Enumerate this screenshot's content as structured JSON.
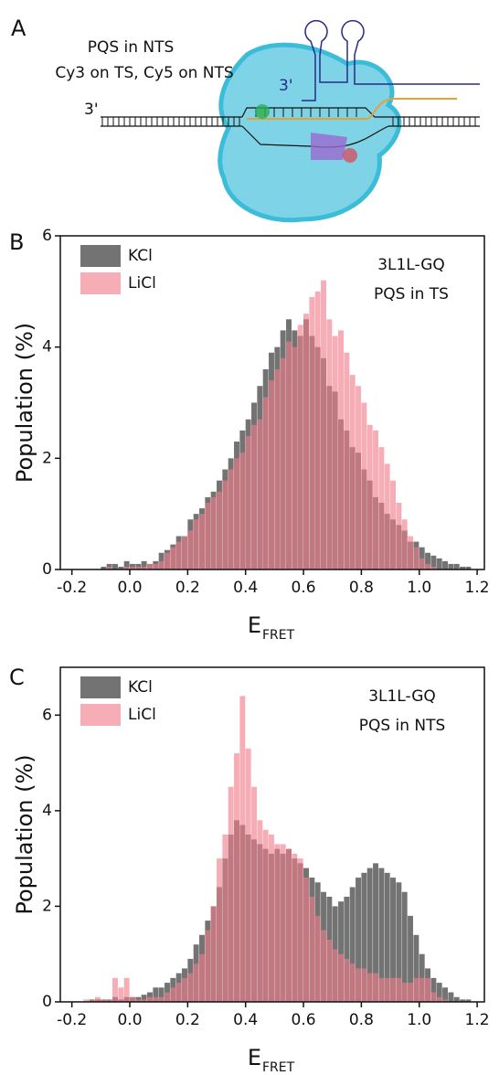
{
  "diagram": {
    "panel_label": "A",
    "title_line1": "PQS in NTS",
    "title_line2": "Cy3 on TS, Cy5 on NTS",
    "end_label_left": "3'",
    "end_label_top": "3'"
  },
  "chart_data": [
    {
      "type": "histogram",
      "panel_label": "B",
      "ylabel": "Population (%)",
      "xlabel": "E",
      "xlabel_subscript": "FRET",
      "annotations": [
        "3L1L-GQ",
        "PQS in TS"
      ],
      "legend": "top-left",
      "xlim": [
        -0.24,
        1.225
      ],
      "ylim": [
        0,
        6
      ],
      "xticks": [
        -0.2,
        {
          "value": 0,
          "label": "0.0"
        },
        0.2,
        0.4,
        0.6,
        0.8,
        {
          "value": 1,
          "label": "1.0"
        },
        1.2
      ],
      "yticks": [
        0,
        2,
        4,
        6
      ],
      "bins": [
        -0.2,
        -0.18,
        -0.16,
        -0.14,
        -0.12,
        -0.1,
        -0.08,
        -0.06,
        -0.04,
        -0.02,
        0,
        0.02,
        0.04,
        0.06,
        0.08,
        0.1,
        0.12,
        0.14,
        0.16,
        0.18,
        0.2,
        0.22,
        0.24,
        0.26,
        0.28,
        0.3,
        0.32,
        0.34,
        0.36,
        0.38,
        0.4,
        0.42,
        0.44,
        0.46,
        0.48,
        0.5,
        0.52,
        0.54,
        0.56,
        0.58,
        0.6,
        0.62,
        0.64,
        0.66,
        0.68,
        0.7,
        0.72,
        0.74,
        0.76,
        0.78,
        0.8,
        0.82,
        0.84,
        0.86,
        0.88,
        0.9,
        0.92,
        0.94,
        0.96,
        0.98,
        1,
        1.02,
        1.04,
        1.06,
        1.08,
        1.1,
        1.12,
        1.14,
        1.16,
        1.18,
        1.2
      ],
      "series": [
        {
          "name": "KCl",
          "color": "#5a5a5a",
          "values": [
            0,
            0,
            0,
            0,
            0,
            0.05,
            0.1,
            0.1,
            0.05,
            0.15,
            0.1,
            0.1,
            0.15,
            0.1,
            0.15,
            0.3,
            0.35,
            0.45,
            0.6,
            0.6,
            0.9,
            1.0,
            1.1,
            1.3,
            1.4,
            1.6,
            1.8,
            2.0,
            2.3,
            2.5,
            2.7,
            3.0,
            3.3,
            3.6,
            3.9,
            4.0,
            4.3,
            4.5,
            4.3,
            4.2,
            4.5,
            4.2,
            4.0,
            3.8,
            3.3,
            3.2,
            2.7,
            2.5,
            2.2,
            2.1,
            1.8,
            1.6,
            1.3,
            1.2,
            1.0,
            0.9,
            0.8,
            0.7,
            0.5,
            0.5,
            0.4,
            0.3,
            0.25,
            0.2,
            0.15,
            0.1,
            0.1,
            0.05,
            0.05,
            0
          ]
        },
        {
          "name": "LiCl",
          "color": "#f27b88",
          "values": [
            0,
            0,
            0,
            0,
            0,
            0,
            0.05,
            0,
            0,
            0.05,
            0.05,
            0.05,
            0.05,
            0.1,
            0.1,
            0.15,
            0.3,
            0.4,
            0.5,
            0.6,
            0.7,
            0.9,
            1.0,
            1.2,
            1.3,
            1.4,
            1.6,
            1.8,
            2.0,
            2.1,
            2.4,
            2.6,
            2.7,
            3.1,
            3.4,
            3.6,
            3.8,
            4.1,
            4.0,
            4.4,
            4.6,
            4.9,
            5.0,
            5.2,
            4.5,
            4.2,
            4.3,
            3.9,
            3.5,
            3.3,
            3.0,
            2.6,
            2.5,
            2.2,
            1.9,
            1.6,
            1.2,
            0.9,
            0.6,
            0.4,
            0.2,
            0.1,
            0.05,
            0,
            0,
            0,
            0,
            0,
            0,
            0
          ]
        }
      ]
    },
    {
      "type": "histogram",
      "panel_label": "C",
      "ylabel": "Population (%)",
      "xlabel": "E",
      "xlabel_subscript": "FRET",
      "annotations": [
        "3L1L-GQ",
        "PQS in NTS"
      ],
      "legend": "top-left",
      "xlim": [
        -0.24,
        1.225
      ],
      "ylim": [
        0,
        7
      ],
      "xticks": [
        -0.2,
        {
          "value": 0,
          "label": "0.0"
        },
        0.2,
        0.4,
        0.6,
        0.8,
        {
          "value": 1,
          "label": "1.0"
        },
        1.2
      ],
      "yticks": [
        0,
        2,
        4,
        6
      ],
      "bins": [
        -0.2,
        -0.18,
        -0.16,
        -0.14,
        -0.12,
        -0.1,
        -0.08,
        -0.06,
        -0.04,
        -0.02,
        0,
        0.02,
        0.04,
        0.06,
        0.08,
        0.1,
        0.12,
        0.14,
        0.16,
        0.18,
        0.2,
        0.22,
        0.24,
        0.26,
        0.28,
        0.3,
        0.32,
        0.34,
        0.36,
        0.38,
        0.4,
        0.42,
        0.44,
        0.46,
        0.48,
        0.5,
        0.52,
        0.54,
        0.56,
        0.58,
        0.6,
        0.62,
        0.64,
        0.66,
        0.68,
        0.7,
        0.72,
        0.74,
        0.76,
        0.78,
        0.8,
        0.82,
        0.84,
        0.86,
        0.88,
        0.9,
        0.92,
        0.94,
        0.96,
        0.98,
        1,
        1.02,
        1.04,
        1.06,
        1.08,
        1.1,
        1.12,
        1.14,
        1.16,
        1.18,
        1.2
      ],
      "series": [
        {
          "name": "KCl",
          "color": "#5a5a5a",
          "values": [
            0,
            0,
            0,
            0.05,
            0.05,
            0.05,
            0.05,
            0.1,
            0.05,
            0.1,
            0.1,
            0.1,
            0.15,
            0.2,
            0.3,
            0.3,
            0.4,
            0.5,
            0.6,
            0.7,
            0.9,
            1.2,
            1.4,
            1.7,
            2.0,
            2.4,
            3.0,
            3.5,
            3.8,
            3.7,
            3.5,
            3.4,
            3.3,
            3.2,
            3.1,
            3.2,
            3.1,
            3.2,
            3.0,
            2.9,
            2.8,
            2.6,
            2.5,
            2.3,
            2.2,
            2.0,
            2.1,
            2.2,
            2.4,
            2.6,
            2.7,
            2.8,
            2.9,
            2.8,
            2.7,
            2.6,
            2.5,
            2.3,
            1.8,
            1.4,
            1.0,
            0.7,
            0.5,
            0.4,
            0.3,
            0.2,
            0.1,
            0.05,
            0.05,
            0
          ]
        },
        {
          "name": "LiCl",
          "color": "#f27b88",
          "values": [
            0,
            0,
            0.05,
            0.05,
            0.1,
            0.05,
            0.05,
            0.5,
            0.3,
            0.5,
            0.1,
            0.05,
            0.05,
            0.1,
            0.1,
            0.1,
            0.2,
            0.3,
            0.4,
            0.5,
            0.6,
            0.8,
            1.0,
            1.5,
            2.0,
            3.0,
            3.5,
            4.5,
            5.2,
            6.4,
            5.3,
            4.5,
            3.8,
            3.6,
            3.5,
            3.3,
            3.3,
            3.2,
            3.1,
            3.0,
            2.6,
            2.2,
            1.8,
            1.5,
            1.3,
            1.1,
            1.0,
            0.9,
            0.8,
            0.7,
            0.7,
            0.6,
            0.6,
            0.5,
            0.5,
            0.5,
            0.5,
            0.4,
            0.4,
            0.5,
            0.5,
            0.5,
            0.2,
            0.1,
            0.05,
            0,
            0,
            0,
            0,
            0
          ]
        }
      ]
    }
  ]
}
